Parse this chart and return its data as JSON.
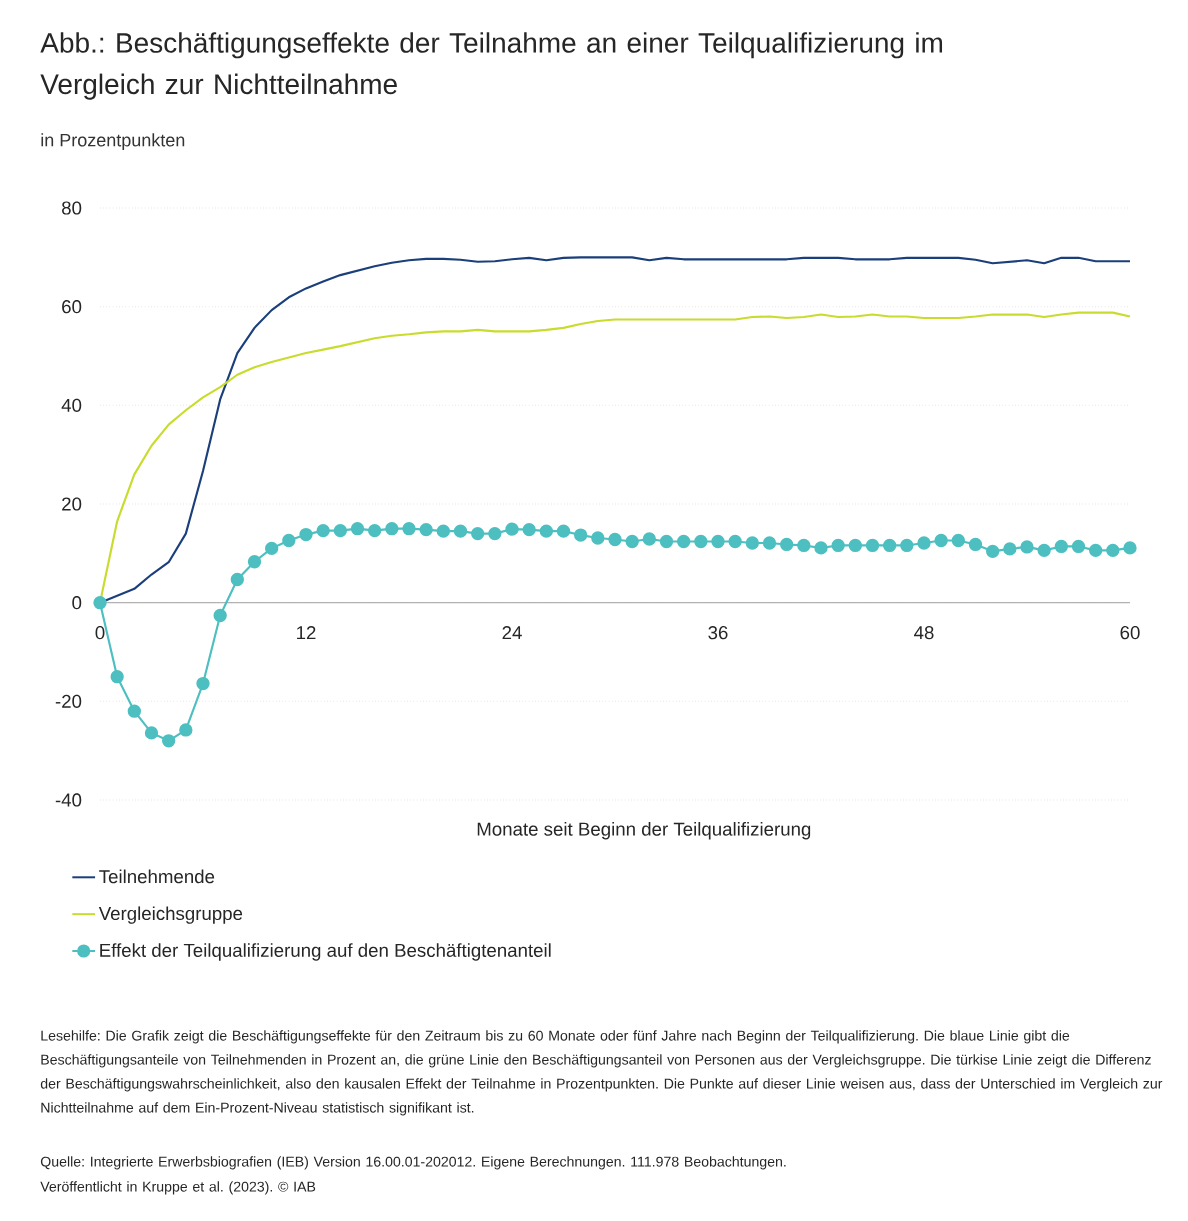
{
  "chart_data": {
    "type": "line",
    "title": "Abb.: Beschäftigungseffekte der Teilnahme an einer Teilqualifizierung im Vergleich zur Nichtteilnahme",
    "subtitle": "in Prozentpunkten",
    "xlabel": "Monate seit Beginn der Teilqualifizierung",
    "x": [
      0,
      1,
      2,
      3,
      4,
      5,
      6,
      7,
      8,
      9,
      10,
      11,
      12,
      13,
      14,
      15,
      16,
      17,
      18,
      19,
      20,
      21,
      22,
      23,
      24,
      25,
      26,
      27,
      28,
      29,
      30,
      31,
      32,
      33,
      34,
      35,
      36,
      37,
      38,
      39,
      40,
      41,
      42,
      43,
      44,
      45,
      46,
      47,
      48,
      49,
      50,
      51,
      52,
      53,
      54,
      55,
      56,
      57,
      58,
      59,
      60
    ],
    "xlim": [
      0,
      60
    ],
    "xticks": [
      0,
      12,
      24,
      36,
      48,
      60
    ],
    "ylim": [
      -40,
      80
    ],
    "yticks": [
      -40,
      -20,
      0,
      20,
      40,
      60,
      80
    ],
    "grid": "y",
    "legend": "bottom left",
    "series": [
      {
        "name": "Teilnehmende",
        "color": "#1b3f7b",
        "marker": "none",
        "values": [
          0,
          1.4,
          2.8,
          5.7,
          8.2,
          14,
          26.7,
          41.2,
          50.6,
          55.7,
          59.3,
          61.9,
          63.7,
          65.1,
          66.4,
          67.3,
          68.2,
          68.9,
          69.4,
          69.7,
          69.7,
          69.5,
          69.1,
          69.2,
          69.6,
          69.9,
          69.4,
          69.9,
          70,
          70,
          70,
          70,
          69.4,
          69.9,
          69.6,
          69.6,
          69.6,
          69.6,
          69.6,
          69.6,
          69.6,
          69.9,
          69.9,
          69.9,
          69.6,
          69.6,
          69.6,
          69.9,
          69.9,
          69.9,
          69.9,
          69.5,
          68.8,
          69.1,
          69.4,
          68.8,
          69.9,
          69.9,
          69.2,
          69.2,
          69.2
        ]
      },
      {
        "name": "Vergleichsgruppe",
        "color": "#c9db2c",
        "marker": "none",
        "values": [
          0,
          16.5,
          26,
          31.8,
          36.1,
          39,
          41.6,
          43.7,
          46.2,
          47.7,
          48.8,
          49.7,
          50.6,
          51.3,
          52,
          52.8,
          53.6,
          54.1,
          54.4,
          54.8,
          55,
          55,
          55.3,
          55,
          55,
          55,
          55.3,
          55.7,
          56.5,
          57.1,
          57.4,
          57.4,
          57.4,
          57.4,
          57.4,
          57.4,
          57.4,
          57.4,
          57.9,
          58,
          57.7,
          57.9,
          58.4,
          57.9,
          58,
          58.4,
          58,
          58,
          57.7,
          57.7,
          57.7,
          58,
          58.4,
          58.4,
          58.4,
          57.9,
          58.4,
          58.8,
          58.8,
          58.8,
          58
        ]
      },
      {
        "name": "Effekt der Teilqualifizierung auf den Beschäftigtenanteil",
        "color": "#4dbfc0",
        "marker": "circle",
        "values": [
          0,
          -15,
          -22,
          -26.4,
          -28,
          -25.8,
          -16.4,
          -2.6,
          4.7,
          8.3,
          11,
          12.6,
          13.8,
          14.6,
          14.6,
          15,
          14.6,
          15,
          15,
          14.8,
          14.5,
          14.5,
          14,
          14,
          14.9,
          14.8,
          14.5,
          14.5,
          13.7,
          13.1,
          12.8,
          12.4,
          12.9,
          12.4,
          12.4,
          12.4,
          12.4,
          12.4,
          12.1,
          12.1,
          11.8,
          11.6,
          11.1,
          11.6,
          11.6,
          11.6,
          11.6,
          11.6,
          12.1,
          12.6,
          12.6,
          11.8,
          10.4,
          10.9,
          11.3,
          10.6,
          11.4,
          11.4,
          10.6,
          10.6,
          11.1
        ]
      }
    ],
    "annotations": [
      "Lesehilfe: Die Grafik zeigt die Beschäftigungseffekte für den Zeitraum bis zu 60 Monate oder fünf Jahre nach Beginn der Teilqualifizierung. Die blaue Linie gibt die Beschäftigungsanteile von Teilnehmenden in Prozent an, die grüne Linie den Beschäftigungsanteil von Personen aus der Vergleichsgruppe. Die türkise Linie zeigt die Differenz der Beschäftigungswahrscheinlichkeit, also den kausalen Effekt der Teilnahme in Prozentpunkten. Die Punkte auf dieser Linie weisen aus, dass der Unterschied im Vergleich zur Nichtteilnahme auf dem Ein-Prozent-Niveau statistisch signifikant ist.",
      "Quelle: Integrierte Erwerbsbiografien (IEB) Version 16.00.01-202012. Eigene Berechnungen. 111.978 Beobachtungen.",
      "Veröffentlicht in Kruppe et al. (2023).  © IAB"
    ]
  }
}
